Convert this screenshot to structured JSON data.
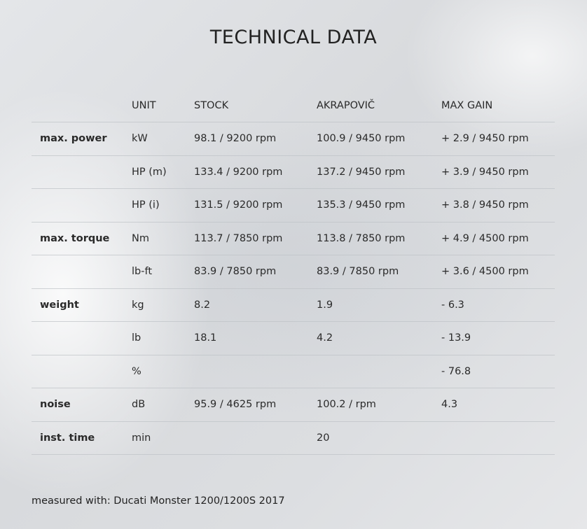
{
  "title": "TECHNICAL DATA",
  "headers": [
    "",
    "UNIT",
    "STOCK",
    "AKRAPOVIČ",
    "MAX GAIN"
  ],
  "rows": [
    [
      "max. power",
      "kW",
      "98.1 / 9200 rpm",
      "100.9 / 9450 rpm",
      "+ 2.9 / 9450 rpm"
    ],
    [
      "",
      "HP (m)",
      "133.4 / 9200 rpm",
      "137.2 / 9450 rpm",
      "+ 3.9 / 9450 rpm"
    ],
    [
      "",
      "HP (i)",
      "131.5 / 9200 rpm",
      "135.3 / 9450 rpm",
      "+ 3.8 / 9450 rpm"
    ],
    [
      "max. torque",
      "Nm",
      "113.7 / 7850 rpm",
      "113.8 / 7850 rpm",
      "+ 4.9 / 4500 rpm"
    ],
    [
      "",
      "lb-ft",
      "83.9 / 7850 rpm",
      "83.9 / 7850 rpm",
      "+ 3.6 / 4500 rpm"
    ],
    [
      "weight",
      "kg",
      "8.2",
      "1.9",
      "- 6.3"
    ],
    [
      "",
      "lb",
      "18.1",
      "4.2",
      "- 13.9"
    ],
    [
      "",
      "%",
      "",
      "",
      "- 76.8"
    ],
    [
      "noise",
      "dB",
      "95.9 / 4625 rpm",
      "100.2 / rpm",
      "4.3"
    ],
    [
      "inst. time",
      "min",
      "",
      "20",
      ""
    ]
  ],
  "footnote": "measured with: Ducati Monster 1200/1200S 2017"
}
